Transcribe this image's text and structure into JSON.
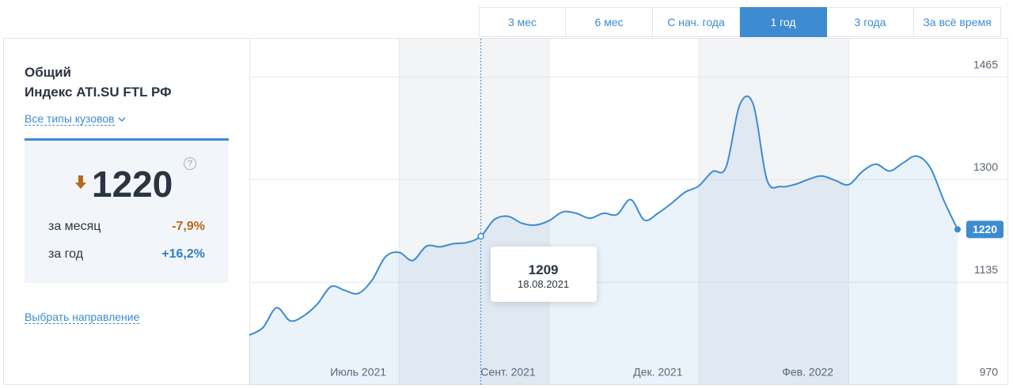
{
  "tabs": [
    {
      "label": "3 мес",
      "active": false
    },
    {
      "label": "6 мес",
      "active": false
    },
    {
      "label": "С нач. года",
      "active": false
    },
    {
      "label": "1 год",
      "active": true
    },
    {
      "label": "3 года",
      "active": false
    },
    {
      "label": "За всё время",
      "active": false
    }
  ],
  "sidebar": {
    "title_lines": [
      "Общий",
      "Индекс ATI.SU FTL РФ"
    ],
    "filter_link": "Все типы кузовов",
    "current_value": 1220,
    "help": "?",
    "stats": [
      {
        "label": "за месяц",
        "value": "-7,9%",
        "color": "#b8681a"
      },
      {
        "label": "за год",
        "value": "+16,2%",
        "color": "#2f7fc4"
      }
    ],
    "direction_link": "Выбрать направление"
  },
  "chart_data": {
    "type": "line",
    "color": "#3d8bd1",
    "categories": [
      null,
      null,
      null,
      null,
      null,
      null,
      null,
      null,
      "Июль 2021",
      null,
      null,
      null,
      null,
      null,
      null,
      null,
      null,
      null,
      null,
      "Сент. 2021",
      null,
      null,
      null,
      null,
      null,
      null,
      null,
      null,
      null,
      null,
      "Дек. 2021",
      null,
      null,
      null,
      null,
      null,
      null,
      null,
      null,
      null,
      null,
      "Фев. 2022",
      null,
      null,
      null,
      null,
      null,
      null,
      null,
      null,
      null,
      null,
      null
    ],
    "values": [
      1050,
      1062,
      1094,
      1073,
      1081,
      1100,
      1128,
      1122,
      1117,
      1138,
      1176,
      1183,
      1170,
      1193,
      1192,
      1197,
      1199,
      1209,
      1236,
      1241,
      1230,
      1227,
      1234,
      1248,
      1246,
      1238,
      1246,
      1244,
      1268,
      1235,
      1246,
      1262,
      1280,
      1290,
      1313,
      1320,
      1420,
      1421,
      1300,
      1289,
      1292,
      1300,
      1306,
      1299,
      1292,
      1313,
      1325,
      1314,
      1327,
      1338,
      1319,
      1266,
      1220
    ],
    "ylim": [
      970,
      1528
    ],
    "yticks": [
      970,
      1135,
      1300,
      1465
    ],
    "grid": true,
    "annotations": [
      {
        "value": 1209,
        "label": "18.08.2021"
      }
    ]
  }
}
